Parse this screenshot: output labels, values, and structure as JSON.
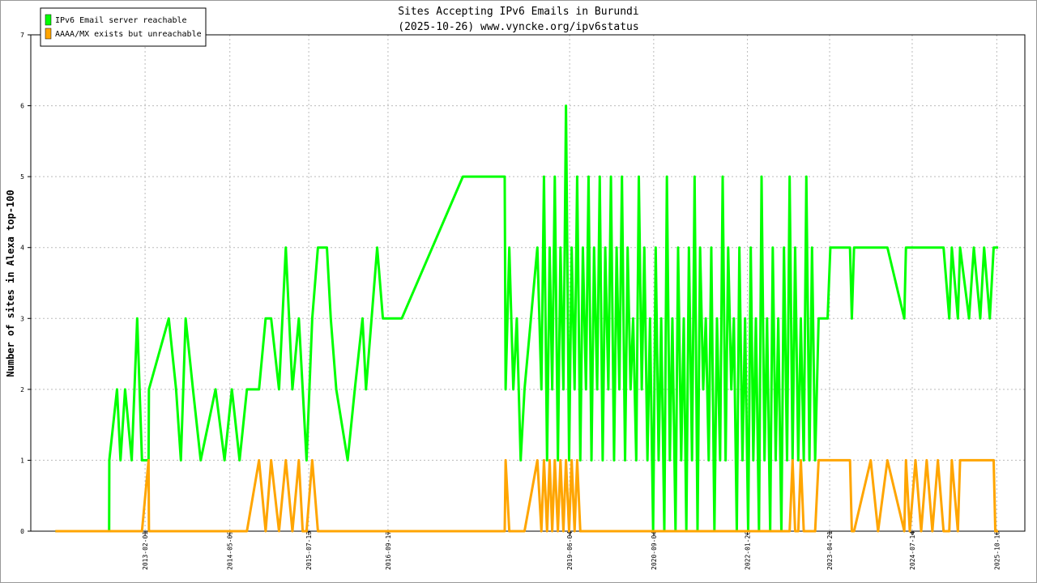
{
  "chart_data": {
    "type": "line",
    "title": "Sites Accepting IPv6 Emails in Burundi",
    "subtitle": "(2025-10-26) www.vyncke.org/ipv6status",
    "y_label": "Number of sites in Alexa top-100",
    "grid": true,
    "legend": "top-left",
    "xlim": [
      "2011-05-20",
      "2026-03-20"
    ],
    "xticks": [
      "2013-02-01",
      "2014-05-09",
      "2015-07-13",
      "2016-09-17",
      "2019-06-04",
      "2020-09-04",
      "2022-01-28",
      "2023-04-21",
      "2024-07-14",
      "2025-10-18"
    ],
    "ylim": [
      0,
      7
    ],
    "yticks": [
      0,
      1,
      2,
      3,
      4,
      5,
      6,
      7
    ],
    "x": [
      "2011-10-01",
      "2012-07-20",
      "2012-07-21",
      "2012-09-01",
      "2012-09-20",
      "2012-10-15",
      "2012-11-20",
      "2012-12-20",
      "2013-01-15",
      "2013-02-20",
      "2013-02-22",
      "2013-06-10",
      "2013-07-20",
      "2013-08-15",
      "2013-09-10",
      "2013-10-20",
      "2013-12-01",
      "2014-02-20",
      "2014-04-10",
      "2014-05-20",
      "2014-07-01",
      "2014-08-10",
      "2014-10-15",
      "2014-11-20",
      "2014-12-20",
      "2015-02-01",
      "2015-03-10",
      "2015-04-15",
      "2015-05-20",
      "2015-06-10",
      "2015-07-01",
      "2015-08-01",
      "2015-09-01",
      "2015-10-20",
      "2015-11-10",
      "2015-12-10",
      "2016-02-10",
      "2016-03-20",
      "2016-05-01",
      "2016-05-20",
      "2016-07-20",
      "2016-08-20",
      "2016-12-01",
      "2017-10-30",
      "2018-06-15",
      "2018-06-20",
      "2018-07-10",
      "2018-08-01",
      "2018-08-20",
      "2018-09-10",
      "2018-10-01",
      "2018-12-10",
      "2019-01-01",
      "2019-01-15",
      "2019-02-01",
      "2019-02-15",
      "2019-03-01",
      "2019-03-15",
      "2019-04-01",
      "2019-04-15",
      "2019-05-01",
      "2019-05-15",
      "2019-06-01",
      "2019-06-15",
      "2019-07-01",
      "2019-07-15",
      "2019-08-01",
      "2019-08-15",
      "2019-09-01",
      "2019-09-15",
      "2019-10-01",
      "2019-10-15",
      "2019-11-01",
      "2019-11-15",
      "2019-12-01",
      "2019-12-15",
      "2020-01-01",
      "2020-01-15",
      "2020-02-01",
      "2020-02-15",
      "2020-03-01",
      "2020-03-15",
      "2020-04-01",
      "2020-04-15",
      "2020-05-01",
      "2020-05-15",
      "2020-06-01",
      "2020-06-15",
      "2020-07-01",
      "2020-07-15",
      "2020-08-01",
      "2020-08-15",
      "2020-09-01",
      "2020-09-15",
      "2020-10-01",
      "2020-10-15",
      "2020-11-01",
      "2020-11-15",
      "2020-12-01",
      "2020-12-15",
      "2021-01-01",
      "2021-01-15",
      "2021-02-01",
      "2021-02-15",
      "2021-03-01",
      "2021-03-15",
      "2021-04-01",
      "2021-04-15",
      "2021-05-01",
      "2021-05-15",
      "2021-06-01",
      "2021-06-15",
      "2021-07-01",
      "2021-07-15",
      "2021-08-01",
      "2021-08-15",
      "2021-09-01",
      "2021-09-15",
      "2021-10-01",
      "2021-10-15",
      "2021-11-01",
      "2021-11-15",
      "2021-12-01",
      "2021-12-15",
      "2022-01-01",
      "2022-01-15",
      "2022-02-01",
      "2022-02-15",
      "2022-03-01",
      "2022-03-15",
      "2022-04-01",
      "2022-04-15",
      "2022-05-01",
      "2022-05-15",
      "2022-06-01",
      "2022-06-15",
      "2022-07-01",
      "2022-07-15",
      "2022-08-01",
      "2022-08-15",
      "2022-09-01",
      "2022-09-15",
      "2022-10-01",
      "2022-10-15",
      "2022-11-01",
      "2022-11-15",
      "2022-12-01",
      "2022-12-15",
      "2023-01-01",
      "2023-01-15",
      "2023-02-01",
      "2023-02-20",
      "2023-04-10",
      "2023-04-25",
      "2023-08-10",
      "2023-08-20",
      "2023-09-01",
      "2023-12-01",
      "2024-01-10",
      "2024-03-01",
      "2024-06-01",
      "2024-06-10",
      "2024-07-01",
      "2024-08-01",
      "2024-09-01",
      "2024-10-01",
      "2024-11-01",
      "2024-12-01",
      "2025-01-01",
      "2025-02-01",
      "2025-02-15",
      "2025-03-20",
      "2025-04-01",
      "2025-05-20",
      "2025-06-15",
      "2025-07-20",
      "2025-08-10",
      "2025-09-10",
      "2025-10-01",
      "2025-10-10",
      "2025-10-26"
    ],
    "series": [
      {
        "name": "IPv6 Email server reachable",
        "color": "#00ff00",
        "values": [
          0,
          0,
          1,
          2,
          1,
          2,
          1,
          3,
          1,
          1,
          2,
          3,
          2,
          1,
          3,
          2,
          1,
          2,
          1,
          2,
          1,
          2,
          2,
          3,
          3,
          2,
          4,
          2,
          3,
          2,
          1,
          3,
          4,
          4,
          3,
          2,
          1,
          2,
          3,
          2,
          4,
          3,
          3,
          5,
          5,
          2,
          4,
          2,
          3,
          1,
          2,
          4,
          2,
          5,
          1,
          4,
          2,
          5,
          1,
          4,
          2,
          6,
          1,
          4,
          2,
          5,
          1,
          4,
          2,
          5,
          1,
          4,
          2,
          5,
          1,
          4,
          2,
          5,
          1,
          4,
          2,
          5,
          1,
          4,
          2,
          3,
          1,
          5,
          2,
          4,
          1,
          3,
          0,
          4,
          1,
          3,
          0,
          5,
          1,
          3,
          0,
          4,
          1,
          3,
          0,
          4,
          1,
          5,
          0,
          4,
          2,
          3,
          1,
          4,
          0,
          3,
          1,
          5,
          1,
          4,
          2,
          3,
          0,
          4,
          1,
          3,
          0,
          4,
          1,
          3,
          0,
          5,
          1,
          3,
          0,
          4,
          1,
          3,
          0,
          4,
          1,
          5,
          1,
          4,
          1,
          3,
          1,
          5,
          1,
          4,
          1,
          3,
          3,
          4,
          4,
          3,
          4,
          4,
          4,
          4,
          3,
          4,
          4,
          4,
          4,
          4,
          4,
          4,
          4,
          3,
          4,
          3,
          4,
          3,
          4,
          3,
          4,
          3,
          4,
          4,
          4
        ]
      },
      {
        "name": "AAAA/MX exists but unreachable",
        "color": "#ffa500",
        "values": [
          0,
          0,
          0,
          0,
          0,
          0,
          0,
          0,
          0,
          1,
          0,
          0,
          0,
          0,
          0,
          0,
          0,
          0,
          0,
          0,
          0,
          0,
          1,
          0,
          1,
          0,
          1,
          0,
          1,
          0,
          0,
          1,
          0,
          0,
          0,
          0,
          0,
          0,
          0,
          0,
          0,
          0,
          0,
          0,
          0,
          1,
          0,
          0,
          0,
          0,
          0,
          1,
          0,
          1,
          0,
          1,
          0,
          1,
          0,
          1,
          0,
          1,
          0,
          1,
          0,
          1,
          0,
          0,
          0,
          0,
          0,
          0,
          0,
          0,
          0,
          0,
          0,
          0,
          0,
          0,
          0,
          0,
          0,
          0,
          0,
          0,
          0,
          0,
          0,
          0,
          0,
          0,
          0,
          0,
          0,
          0,
          0,
          0,
          0,
          0,
          0,
          0,
          0,
          0,
          0,
          0,
          0,
          0,
          0,
          0,
          0,
          0,
          0,
          0,
          0,
          0,
          0,
          0,
          0,
          0,
          0,
          0,
          0,
          0,
          0,
          0,
          0,
          0,
          0,
          0,
          0,
          0,
          0,
          0,
          0,
          0,
          0,
          0,
          0,
          0,
          0,
          0,
          1,
          0,
          0,
          1,
          0,
          0,
          0,
          0,
          0,
          1,
          1,
          1,
          1,
          0,
          0,
          1,
          0,
          1,
          0,
          1,
          0,
          1,
          0,
          1,
          0,
          1,
          0,
          0,
          1,
          0,
          1,
          1,
          1,
          1,
          1,
          1,
          1,
          0,
          0
        ]
      }
    ]
  }
}
